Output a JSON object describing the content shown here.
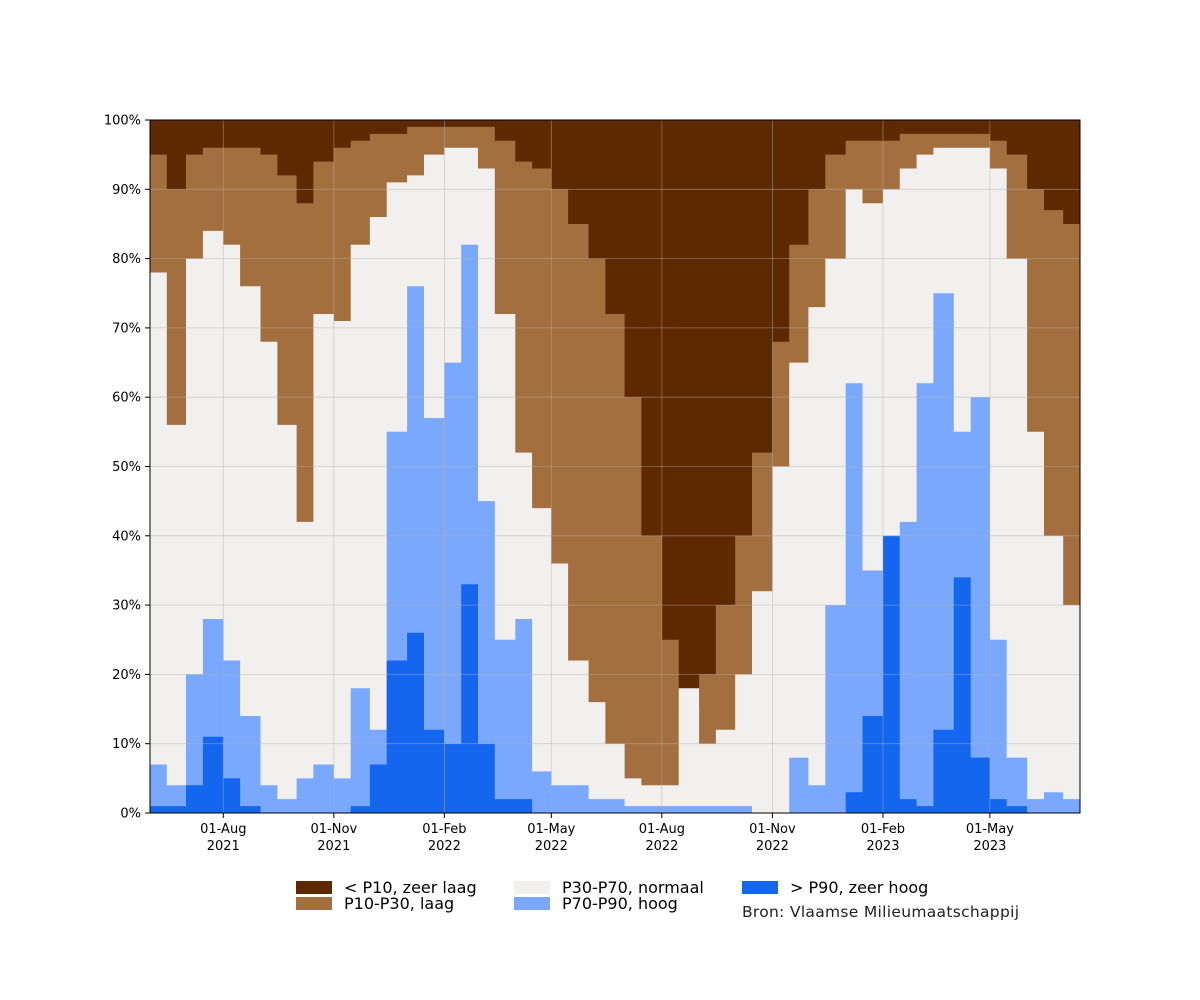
{
  "chart_data": {
    "type": "area",
    "stacking": "percent",
    "ylim": [
      0,
      100
    ],
    "y_ticks": [
      "0%",
      "10%",
      "20%",
      "30%",
      "40%",
      "50%",
      "60%",
      "70%",
      "80%",
      "90%",
      "100%"
    ],
    "x_ticks": [
      {
        "date": "2021-08-01",
        "line1": "01-Aug",
        "line2": "2021"
      },
      {
        "date": "2021-11-01",
        "line1": "01-Nov",
        "line2": "2021"
      },
      {
        "date": "2022-02-01",
        "line1": "01-Feb",
        "line2": "2022"
      },
      {
        "date": "2022-05-01",
        "line1": "01-May",
        "line2": "2022"
      },
      {
        "date": "2022-08-01",
        "line1": "01-Aug",
        "line2": "2022"
      },
      {
        "date": "2022-11-01",
        "line1": "01-Nov",
        "line2": "2022"
      },
      {
        "date": "2023-02-01",
        "line1": "01-Feb",
        "line2": "2023"
      },
      {
        "date": "2023-05-01",
        "line1": "01-May",
        "line2": "2023"
      }
    ],
    "xlim": [
      "2021-06-01",
      "2023-07-15"
    ],
    "grid": true,
    "legend_position": "bottom",
    "series": [
      {
        "name": "< P10, zeer laag",
        "color": "#5e2900"
      },
      {
        "name": "P10-P30, laag",
        "color": "#a46f3e"
      },
      {
        "name": "P30-P70, normaal",
        "color": "#f2f0ee"
      },
      {
        "name": "P70-P90, hoog",
        "color": "#7aa8fd"
      },
      {
        "name": "> P90, zeer hoog",
        "color": "#1366ed"
      }
    ],
    "x": [
      "2021-06-01",
      "2021-06-15",
      "2021-07-01",
      "2021-07-15",
      "2021-08-01",
      "2021-08-15",
      "2021-09-01",
      "2021-09-15",
      "2021-10-01",
      "2021-10-15",
      "2021-11-01",
      "2021-11-15",
      "2021-12-01",
      "2021-12-15",
      "2022-01-01",
      "2022-01-15",
      "2022-02-01",
      "2022-02-15",
      "2022-03-01",
      "2022-03-15",
      "2022-04-01",
      "2022-04-15",
      "2022-05-01",
      "2022-05-15",
      "2022-06-01",
      "2022-06-15",
      "2022-07-01",
      "2022-07-15",
      "2022-08-01",
      "2022-08-15",
      "2022-09-01",
      "2022-09-15",
      "2022-10-01",
      "2022-10-15",
      "2022-11-01",
      "2022-11-15",
      "2022-12-01",
      "2022-12-15",
      "2023-01-01",
      "2023-01-15",
      "2023-02-01",
      "2023-02-15",
      "2023-03-01",
      "2023-03-15",
      "2023-04-01",
      "2023-04-15",
      "2023-05-01",
      "2023-05-15",
      "2023-06-01",
      "2023-06-15",
      "2023-07-01",
      "2023-07-15"
    ],
    "cumulative_tops": {
      "gt_p90": [
        1,
        1,
        4,
        11,
        5,
        1,
        0,
        0,
        0,
        0,
        0,
        1,
        7,
        22,
        26,
        12,
        10,
        33,
        10,
        2,
        2,
        0,
        0,
        0,
        0,
        0,
        0,
        0,
        0,
        0,
        0,
        0,
        0,
        0,
        0,
        0,
        0,
        0,
        3,
        14,
        40,
        2,
        1,
        12,
        34,
        8,
        2,
        1,
        0,
        0,
        0,
        0
      ],
      "p70_p90": [
        7,
        4,
        20,
        28,
        22,
        14,
        4,
        2,
        5,
        7,
        5,
        18,
        12,
        55,
        76,
        57,
        65,
        82,
        45,
        25,
        28,
        6,
        4,
        4,
        2,
        2,
        1,
        1,
        1,
        1,
        1,
        1,
        1,
        0,
        0,
        8,
        4,
        30,
        62,
        35,
        20,
        42,
        62,
        75,
        55,
        60,
        25,
        8,
        2,
        3,
        2,
        3
      ],
      "p30_p70": [
        78,
        56,
        80,
        84,
        82,
        76,
        68,
        56,
        42,
        72,
        71,
        82,
        86,
        91,
        92,
        95,
        96,
        96,
        93,
        72,
        52,
        44,
        36,
        22,
        16,
        10,
        5,
        4,
        4,
        18,
        10,
        12,
        20,
        32,
        50,
        65,
        73,
        80,
        90,
        88,
        90,
        93,
        95,
        96,
        96,
        96,
        93,
        80,
        55,
        40,
        30,
        26
      ],
      "p10_p30": [
        95,
        90,
        95,
        96,
        96,
        96,
        95,
        92,
        88,
        94,
        96,
        97,
        98,
        98,
        99,
        99,
        99,
        99,
        99,
        97,
        94,
        93,
        90,
        85,
        80,
        72,
        60,
        40,
        25,
        15,
        20,
        30,
        40,
        52,
        68,
        82,
        90,
        95,
        97,
        97,
        97,
        98,
        98,
        98,
        98,
        98,
        97,
        95,
        90,
        87,
        85,
        85
      ]
    }
  },
  "legend": {
    "items": [
      {
        "label": "< P10, zeer laag",
        "color": "#5e2900"
      },
      {
        "label": "P10-P30, laag",
        "color": "#a46f3e"
      },
      {
        "label": "P30-P70, normaal",
        "color": "#f2f0ee"
      },
      {
        "label": "P70-P90, hoog",
        "color": "#7aa8fd"
      },
      {
        "label": "> P90, zeer hoog",
        "color": "#1366ed"
      }
    ]
  },
  "source_note": "Bron: Vlaamse Milieumaatschappij"
}
